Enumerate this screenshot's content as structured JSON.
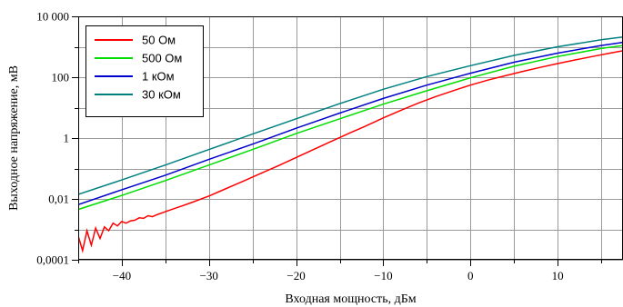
{
  "chart_data": {
    "type": "line",
    "xlabel": "Входная мощность, дБм",
    "ylabel": "Выходное напряжение, мВ",
    "xlim": [
      -45,
      17.5
    ],
    "ylim": [
      0.0001,
      10000
    ],
    "yscale": "log",
    "grid": true,
    "legend_position": "top-left",
    "x_ticks": [
      -40,
      -30,
      -20,
      -10,
      0,
      10
    ],
    "x_tick_labels": [
      "−40",
      "−30",
      "−20",
      "−10",
      "0",
      "10"
    ],
    "y_ticks": [
      0.0001,
      0.01,
      1,
      100,
      10000
    ],
    "y_tick_labels": [
      "0,0001",
      "0,01",
      "1",
      "100",
      "10 000"
    ],
    "series": [
      {
        "name": "50 Ом",
        "color": "#ff0000",
        "x": [
          -45,
          -44.5,
          -44,
          -43.5,
          -43,
          -42.5,
          -42,
          -41.5,
          -41,
          -40.5,
          -40,
          -39.5,
          -39,
          -38.5,
          -38,
          -37.5,
          -37,
          -36.5,
          -36,
          -35,
          -34,
          -33,
          -32,
          -30,
          -28,
          -26,
          -24,
          -22,
          -20,
          -18,
          -16,
          -14,
          -12,
          -10,
          -8,
          -6,
          -4,
          -2,
          0,
          2,
          4,
          6,
          8,
          10,
          12,
          14,
          16,
          17.5
        ],
        "y": [
          0.0006,
          0.0002,
          0.0009,
          0.0003,
          0.0011,
          0.0005,
          0.0012,
          0.0009,
          0.0016,
          0.0013,
          0.0018,
          0.0016,
          0.0019,
          0.002,
          0.0024,
          0.0023,
          0.0028,
          0.0026,
          0.003,
          0.0038,
          0.0048,
          0.006,
          0.0076,
          0.0125,
          0.022,
          0.039,
          0.07,
          0.125,
          0.23,
          0.42,
          0.77,
          1.4,
          2.5,
          4.6,
          8.1,
          14,
          23,
          36,
          55,
          80,
          112,
          155,
          210,
          280,
          370,
          480,
          620,
          740
        ]
      },
      {
        "name": "500 Ом",
        "color": "#00dd00",
        "x": [
          -45,
          -40,
          -35,
          -30,
          -25,
          -20,
          -15,
          -10,
          -5,
          0,
          5,
          10,
          15,
          17.5
        ],
        "y": [
          0.0045,
          0.013,
          0.04,
          0.13,
          0.42,
          1.4,
          4.3,
          13,
          36,
          95,
          230,
          480,
          880,
          1100
        ]
      },
      {
        "name": "1 кОм",
        "color": "#0000cc",
        "x": [
          -45,
          -40,
          -35,
          -30,
          -25,
          -20,
          -15,
          -10,
          -5,
          0,
          5,
          10,
          15,
          17.5
        ],
        "y": [
          0.0065,
          0.02,
          0.06,
          0.2,
          0.63,
          2.1,
          6.6,
          20,
          55,
          135,
          310,
          620,
          1100,
          1400
        ]
      },
      {
        "name": "30 кОм",
        "color": "#008080",
        "x": [
          -45,
          -40,
          -35,
          -30,
          -25,
          -20,
          -15,
          -10,
          -5,
          0,
          5,
          10,
          15,
          17.5
        ],
        "y": [
          0.014,
          0.042,
          0.13,
          0.42,
          1.35,
          4.3,
          13.5,
          40,
          105,
          240,
          520,
          1000,
          1700,
          2100
        ]
      }
    ]
  }
}
